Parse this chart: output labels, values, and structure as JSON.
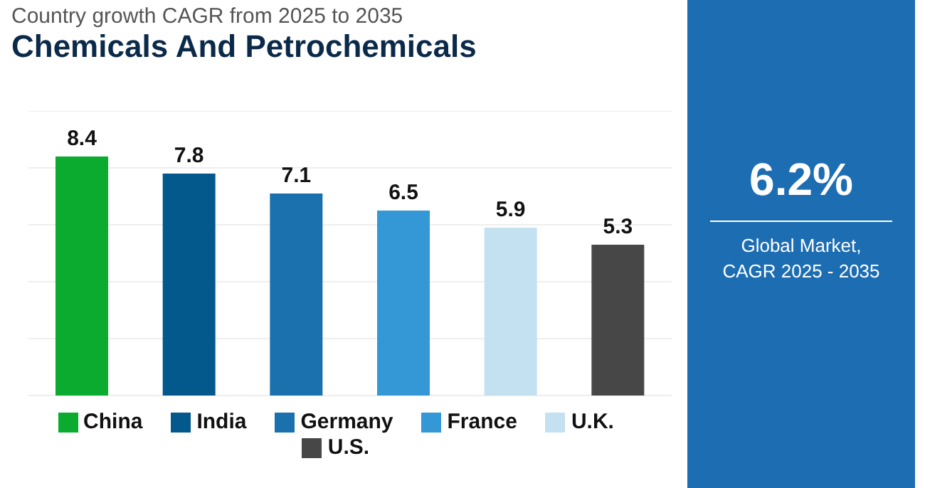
{
  "chart_data": [
    {
      "type": "bar",
      "title": "Country growth CAGR from 2025 to 2035",
      "subtitle": "Chemicals And Petrochemicals",
      "categories": [
        null,
        null,
        null,
        null,
        null,
        null
      ],
      "series": [
        {
          "name": "China",
          "color": "#0aab2f",
          "values": [
            8.4,
            null,
            null,
            null,
            null,
            null
          ]
        },
        {
          "name": "India",
          "color": "#03588c",
          "values": [
            null,
            7.8,
            null,
            null,
            null,
            null
          ]
        },
        {
          "name": "Germany",
          "color": "#1a71ae",
          "values": [
            null,
            null,
            7.1,
            null,
            null,
            null
          ]
        },
        {
          "name": "France",
          "color": "#3497d6",
          "values": [
            null,
            null,
            null,
            6.5,
            null,
            null
          ]
        },
        {
          "name": "U.K.",
          "color": "#c4e1f2",
          "values": [
            null,
            null,
            null,
            null,
            5.9,
            null
          ]
        },
        {
          "name": "U.S.",
          "color": "#474747",
          "values": [
            null,
            null,
            null,
            null,
            null,
            5.3
          ]
        }
      ],
      "ylim": [
        0,
        10
      ],
      "yticks": [
        {
          "value": 0,
          "label": null
        },
        {
          "value": 2,
          "label": null
        },
        {
          "value": 4,
          "label": null
        },
        {
          "value": 6,
          "label": null
        },
        {
          "value": 8,
          "label": null
        }
      ],
      "stacked": true,
      "grid": "y",
      "tick_labels": false,
      "legend": "bottom",
      "data_labels": true
    },
    {
      "type": "other",
      "title": "6.2%",
      "subtitle": "Global Market,\nCAGR 2025 - 2035"
    }
  ]
}
